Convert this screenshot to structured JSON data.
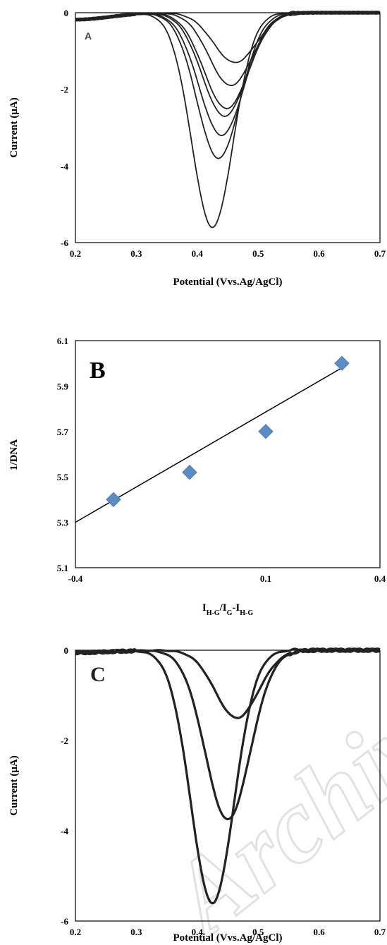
{
  "chart_data": [
    {
      "type": "line",
      "panel_label": "A",
      "xlabel": "Potential (Vvs.Ag/AgCl)",
      "ylabel": "Current (µA)",
      "xlim": [
        0.2,
        0.7
      ],
      "ylim": [
        -6,
        0
      ],
      "x_ticks": [
        "0.2",
        "0.3",
        "0.4",
        "0.5",
        "0.6",
        "0.7"
      ],
      "y_ticks": [
        "0",
        "-2",
        "-4",
        "-6"
      ],
      "series": [
        {
          "peak_x": 0.462,
          "peak_y": -1.3,
          "width": 0.05
        },
        {
          "peak_x": 0.455,
          "peak_y": -1.9,
          "width": 0.05
        },
        {
          "peak_x": 0.448,
          "peak_y": -2.5,
          "width": 0.052
        },
        {
          "peak_x": 0.445,
          "peak_y": -2.7,
          "width": 0.052
        },
        {
          "peak_x": 0.44,
          "peak_y": -3.2,
          "width": 0.052
        },
        {
          "peak_x": 0.435,
          "peak_y": -3.8,
          "width": 0.05
        },
        {
          "peak_x": 0.425,
          "peak_y": -5.6,
          "width": 0.048
        }
      ]
    },
    {
      "type": "scatter",
      "panel_label": "B",
      "xlabel_main": "I",
      "xlabel_parts": [
        {
          "sub": "H-G",
          "text": "/I"
        },
        {
          "sub": "G",
          "text": "-I"
        },
        {
          "sub": "H-G",
          "text": ""
        }
      ],
      "ylabel": "1/DNA",
      "xlim": [
        -0.4,
        0.4
      ],
      "ylim": [
        5.1,
        6.1
      ],
      "x_ticks": [
        "-0.4",
        "0.1",
        "0.4"
      ],
      "x_tick_values": [
        -0.4,
        0.1,
        0.4
      ],
      "y_ticks": [
        "6.1",
        "5.9",
        "5.7",
        "5.5",
        "5.3",
        "5.1"
      ],
      "points": [
        {
          "x": -0.3,
          "y": 5.4
        },
        {
          "x": -0.1,
          "y": 5.52
        },
        {
          "x": 0.1,
          "y": 5.7
        },
        {
          "x": 0.3,
          "y": 6.0
        }
      ],
      "trendline": {
        "x": [
          -0.4,
          0.3
        ],
        "y": [
          5.3,
          5.98
        ]
      },
      "marker_color": "#5b8cc4"
    },
    {
      "type": "line",
      "panel_label": "C",
      "xlabel": "Potential (Vvs.Ag/AgCl)",
      "ylabel": "Current (µA)",
      "xlim": [
        0.2,
        0.7
      ],
      "ylim": [
        -6,
        0
      ],
      "x_ticks": [
        "0.2",
        "0.3",
        "0.4",
        "0.5",
        "0.6",
        "0.7"
      ],
      "y_ticks": [
        "0",
        "-2",
        "-4",
        "-6"
      ],
      "series": [
        {
          "peak_x": 0.465,
          "peak_y": -1.5,
          "width": 0.05
        },
        {
          "peak_x": 0.45,
          "peak_y": -3.75,
          "width": 0.052
        },
        {
          "peak_x": 0.425,
          "peak_y": -5.6,
          "width": 0.05
        }
      ]
    }
  ],
  "watermark": "Archive"
}
